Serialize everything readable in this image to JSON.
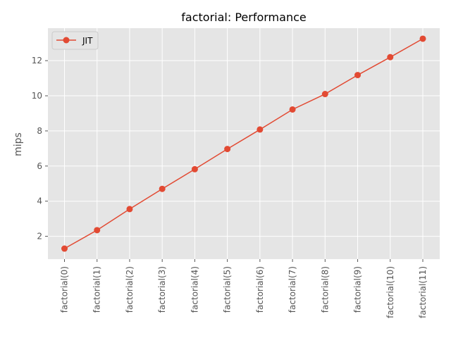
{
  "chart_data": {
    "type": "line",
    "title": "factorial: Performance",
    "xlabel": "",
    "ylabel": "mips",
    "categories": [
      "factorial(0)",
      "factorial(1)",
      "factorial(2)",
      "factorial(3)",
      "factorial(4)",
      "factorial(5)",
      "factorial(6)",
      "factorial(7)",
      "factorial(8)",
      "factorial(9)",
      "factorial(10)",
      "factorial(11)"
    ],
    "series": [
      {
        "name": "JIT",
        "values": [
          1.3,
          2.35,
          3.55,
          4.7,
          5.82,
          6.97,
          8.08,
          9.22,
          10.1,
          11.18,
          12.2,
          13.25
        ],
        "color": "#E24A33"
      }
    ],
    "yticks": [
      2,
      4,
      6,
      8,
      10,
      12
    ],
    "ylim": [
      0.7,
      13.85
    ],
    "grid": true,
    "legend_position": "top-left",
    "background_color": "#E5E5E5"
  }
}
